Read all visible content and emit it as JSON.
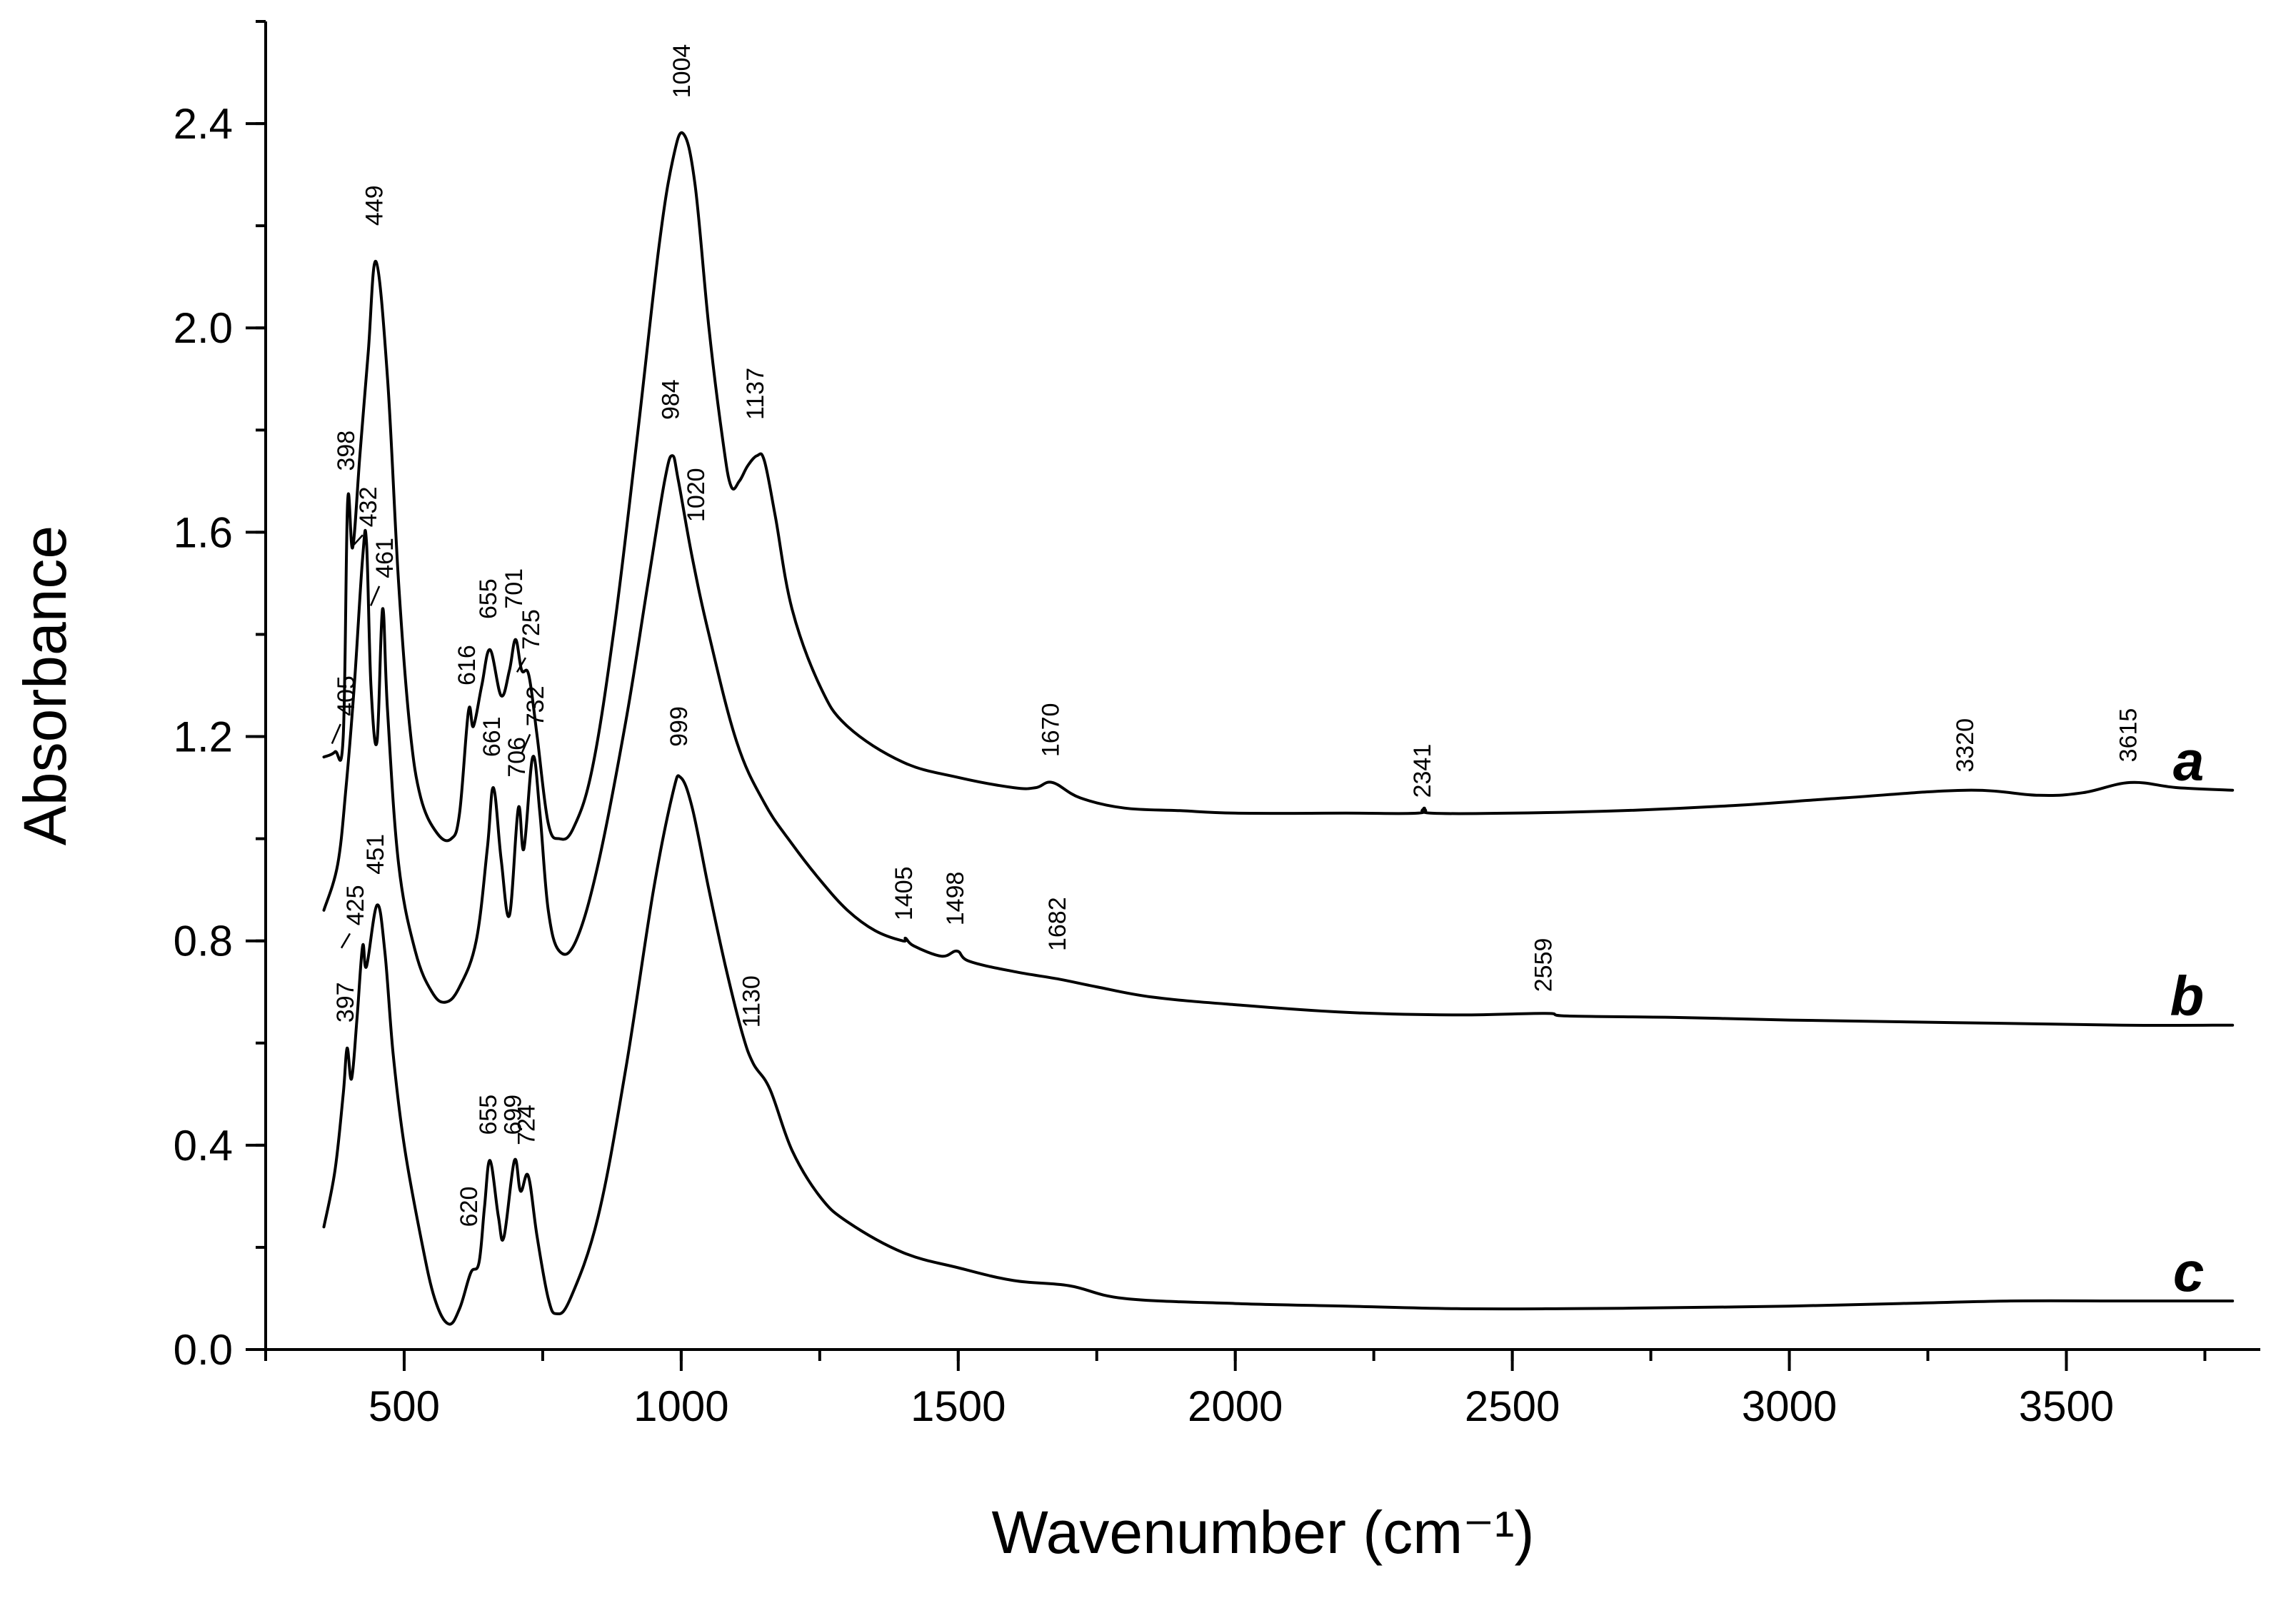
{
  "chart_data": {
    "type": "line",
    "title": "",
    "xlabel": "Wavenumber (cm⁻¹)",
    "ylabel": "Absorbance",
    "xlim": [
      250,
      3850
    ],
    "ylim": [
      0.0,
      2.6
    ],
    "x_ticks": [
      {
        "value": 500,
        "label": "500"
      },
      {
        "value": 1000,
        "label": "1000"
      },
      {
        "value": 1500,
        "label": "1500"
      },
      {
        "value": 2000,
        "label": "2000"
      },
      {
        "value": 2500,
        "label": "2500"
      },
      {
        "value": 3000,
        "label": "3000"
      },
      {
        "value": 3500,
        "label": "3500"
      }
    ],
    "x_minor_step": 250,
    "y_ticks": [
      {
        "value": 0.0,
        "label": "0.0"
      },
      {
        "value": 0.4,
        "label": "0.4"
      },
      {
        "value": 0.8,
        "label": "0.8"
      },
      {
        "value": 1.2,
        "label": "1.2"
      },
      {
        "value": 1.6,
        "label": "1.6"
      },
      {
        "value": 2.0,
        "label": "2.0"
      },
      {
        "value": 2.4,
        "label": "2.4"
      }
    ],
    "y_minor_step": 0.2,
    "grid": false,
    "series": [
      {
        "name": "a",
        "points": [
          [
            355,
            1.16
          ],
          [
            375,
            1.17
          ],
          [
            390,
            1.2
          ],
          [
            398,
            1.66
          ],
          [
            407,
            1.57
          ],
          [
            420,
            1.75
          ],
          [
            435,
            1.95
          ],
          [
            449,
            2.13
          ],
          [
            470,
            1.9
          ],
          [
            490,
            1.5
          ],
          [
            510,
            1.22
          ],
          [
            530,
            1.08
          ],
          [
            560,
            1.01
          ],
          [
            585,
            1.0
          ],
          [
            600,
            1.05
          ],
          [
            616,
            1.25
          ],
          [
            625,
            1.22
          ],
          [
            640,
            1.3
          ],
          [
            655,
            1.37
          ],
          [
            675,
            1.28
          ],
          [
            690,
            1.33
          ],
          [
            701,
            1.39
          ],
          [
            712,
            1.33
          ],
          [
            725,
            1.32
          ],
          [
            740,
            1.2
          ],
          [
            760,
            1.03
          ],
          [
            780,
            1.0
          ],
          [
            805,
            1.02
          ],
          [
            840,
            1.14
          ],
          [
            880,
            1.42
          ],
          [
            920,
            1.78
          ],
          [
            960,
            2.16
          ],
          [
            985,
            2.33
          ],
          [
            1004,
            2.38
          ],
          [
            1025,
            2.28
          ],
          [
            1050,
            2.0
          ],
          [
            1075,
            1.78
          ],
          [
            1090,
            1.69
          ],
          [
            1105,
            1.7
          ],
          [
            1120,
            1.73
          ],
          [
            1137,
            1.75
          ],
          [
            1150,
            1.74
          ],
          [
            1170,
            1.63
          ],
          [
            1200,
            1.45
          ],
          [
            1250,
            1.3
          ],
          [
            1300,
            1.22
          ],
          [
            1400,
            1.15
          ],
          [
            1500,
            1.12
          ],
          [
            1600,
            1.1
          ],
          [
            1640,
            1.1
          ],
          [
            1670,
            1.11
          ],
          [
            1720,
            1.08
          ],
          [
            1800,
            1.06
          ],
          [
            1900,
            1.055
          ],
          [
            2000,
            1.05
          ],
          [
            2200,
            1.05
          ],
          [
            2330,
            1.05
          ],
          [
            2341,
            1.06
          ],
          [
            2352,
            1.05
          ],
          [
            2500,
            1.05
          ],
          [
            2700,
            1.055
          ],
          [
            2900,
            1.065
          ],
          [
            3100,
            1.08
          ],
          [
            3320,
            1.095
          ],
          [
            3450,
            1.085
          ],
          [
            3530,
            1.09
          ],
          [
            3615,
            1.11
          ],
          [
            3700,
            1.1
          ],
          [
            3800,
            1.095
          ]
        ]
      },
      {
        "name": "b",
        "points": [
          [
            355,
            0.86
          ],
          [
            380,
            0.95
          ],
          [
            395,
            1.1
          ],
          [
            410,
            1.3
          ],
          [
            425,
            1.55
          ],
          [
            432,
            1.58
          ],
          [
            440,
            1.3
          ],
          [
            451,
            1.19
          ],
          [
            461,
            1.45
          ],
          [
            470,
            1.25
          ],
          [
            490,
            0.95
          ],
          [
            520,
            0.78
          ],
          [
            550,
            0.7
          ],
          [
            575,
            0.68
          ],
          [
            600,
            0.71
          ],
          [
            630,
            0.8
          ],
          [
            650,
            0.98
          ],
          [
            661,
            1.1
          ],
          [
            675,
            0.96
          ],
          [
            690,
            0.85
          ],
          [
            706,
            1.06
          ],
          [
            716,
            0.98
          ],
          [
            732,
            1.16
          ],
          [
            745,
            1.05
          ],
          [
            760,
            0.86
          ],
          [
            780,
            0.78
          ],
          [
            810,
            0.8
          ],
          [
            850,
            0.95
          ],
          [
            900,
            1.23
          ],
          [
            940,
            1.5
          ],
          [
            970,
            1.7
          ],
          [
            984,
            1.75
          ],
          [
            995,
            1.7
          ],
          [
            1020,
            1.55
          ],
          [
            1050,
            1.4
          ],
          [
            1100,
            1.19
          ],
          [
            1150,
            1.07
          ],
          [
            1200,
            0.99
          ],
          [
            1250,
            0.92
          ],
          [
            1300,
            0.86
          ],
          [
            1350,
            0.82
          ],
          [
            1400,
            0.8
          ],
          [
            1405,
            0.805
          ],
          [
            1420,
            0.79
          ],
          [
            1470,
            0.77
          ],
          [
            1498,
            0.78
          ],
          [
            1520,
            0.76
          ],
          [
            1600,
            0.74
          ],
          [
            1682,
            0.725
          ],
          [
            1750,
            0.71
          ],
          [
            1850,
            0.69
          ],
          [
            2000,
            0.675
          ],
          [
            2200,
            0.66
          ],
          [
            2400,
            0.655
          ],
          [
            2559,
            0.658
          ],
          [
            2600,
            0.653
          ],
          [
            2800,
            0.65
          ],
          [
            3000,
            0.645
          ],
          [
            3300,
            0.64
          ],
          [
            3600,
            0.635
          ],
          [
            3800,
            0.635
          ]
        ]
      },
      {
        "name": "c",
        "points": [
          [
            355,
            0.24
          ],
          [
            375,
            0.35
          ],
          [
            390,
            0.5
          ],
          [
            397,
            0.59
          ],
          [
            405,
            0.53
          ],
          [
            415,
            0.65
          ],
          [
            425,
            0.79
          ],
          [
            432,
            0.75
          ],
          [
            451,
            0.87
          ],
          [
            465,
            0.78
          ],
          [
            480,
            0.58
          ],
          [
            500,
            0.4
          ],
          [
            530,
            0.22
          ],
          [
            555,
            0.1
          ],
          [
            580,
            0.05
          ],
          [
            600,
            0.08
          ],
          [
            620,
            0.15
          ],
          [
            635,
            0.17
          ],
          [
            645,
            0.28
          ],
          [
            655,
            0.37
          ],
          [
            670,
            0.26
          ],
          [
            680,
            0.22
          ],
          [
            699,
            0.37
          ],
          [
            710,
            0.31
          ],
          [
            724,
            0.34
          ],
          [
            740,
            0.22
          ],
          [
            760,
            0.1
          ],
          [
            775,
            0.07
          ],
          [
            800,
            0.1
          ],
          [
            850,
            0.26
          ],
          [
            900,
            0.55
          ],
          [
            950,
            0.9
          ],
          [
            985,
            1.09
          ],
          [
            999,
            1.12
          ],
          [
            1020,
            1.06
          ],
          [
            1050,
            0.9
          ],
          [
            1080,
            0.75
          ],
          [
            1110,
            0.62
          ],
          [
            1130,
            0.56
          ],
          [
            1160,
            0.51
          ],
          [
            1200,
            0.39
          ],
          [
            1250,
            0.3
          ],
          [
            1300,
            0.25
          ],
          [
            1400,
            0.19
          ],
          [
            1500,
            0.16
          ],
          [
            1600,
            0.135
          ],
          [
            1700,
            0.125
          ],
          [
            1800,
            0.1
          ],
          [
            2000,
            0.09
          ],
          [
            2200,
            0.085
          ],
          [
            2400,
            0.08
          ],
          [
            2600,
            0.08
          ],
          [
            2800,
            0.082
          ],
          [
            3000,
            0.085
          ],
          [
            3200,
            0.09
          ],
          [
            3400,
            0.095
          ],
          [
            3600,
            0.095
          ],
          [
            3800,
            0.095
          ]
        ]
      }
    ],
    "peak_labels": [
      {
        "text": "1004",
        "wavenumber": 1004,
        "absorbance": 2.45
      },
      {
        "text": "449",
        "wavenumber": 449,
        "absorbance": 2.2
      },
      {
        "text": "398",
        "wavenumber": 398,
        "absorbance": 1.72
      },
      {
        "text": "432",
        "wavenumber": 438,
        "absorbance": 1.61,
        "leader": [
          1.6,
          1.59
        ]
      },
      {
        "text": "461",
        "wavenumber": 468,
        "absorbance": 1.51,
        "leader": [
          1.5,
          1.47
        ]
      },
      {
        "text": "405",
        "wavenumber": 398,
        "absorbance": 1.24,
        "leader": [
          1.23,
          1.2
        ]
      },
      {
        "text": "616",
        "wavenumber": 616,
        "absorbance": 1.3
      },
      {
        "text": "655",
        "wavenumber": 655,
        "absorbance": 1.43
      },
      {
        "text": "701",
        "wavenumber": 701,
        "absorbance": 1.45
      },
      {
        "text": "725",
        "wavenumber": 732,
        "absorbance": 1.37,
        "leader": [
          1.36,
          1.34
        ]
      },
      {
        "text": "1137",
        "wavenumber": 1137,
        "absorbance": 1.82
      },
      {
        "text": "984",
        "wavenumber": 984,
        "absorbance": 1.82
      },
      {
        "text": "1020",
        "wavenumber": 1030,
        "absorbance": 1.62
      },
      {
        "text": "661",
        "wavenumber": 661,
        "absorbance": 1.16
      },
      {
        "text": "706",
        "wavenumber": 706,
        "absorbance": 1.12
      },
      {
        "text": "732",
        "wavenumber": 740,
        "absorbance": 1.22,
        "leader": [
          1.21,
          1.18
        ]
      },
      {
        "text": "999",
        "wavenumber": 999,
        "absorbance": 1.18
      },
      {
        "text": "425",
        "wavenumber": 415,
        "absorbance": 0.83,
        "leader": [
          0.82,
          0.8
        ]
      },
      {
        "text": "451",
        "wavenumber": 451,
        "absorbance": 0.93
      },
      {
        "text": "397",
        "wavenumber": 397,
        "absorbance": 0.64
      },
      {
        "text": "1670",
        "wavenumber": 1670,
        "absorbance": 1.16
      },
      {
        "text": "2341",
        "wavenumber": 2341,
        "absorbance": 1.08
      },
      {
        "text": "3320",
        "wavenumber": 3320,
        "absorbance": 1.13
      },
      {
        "text": "3615",
        "wavenumber": 3615,
        "absorbance": 1.15
      },
      {
        "text": "1405",
        "wavenumber": 1405,
        "absorbance": 0.84
      },
      {
        "text": "1498",
        "wavenumber": 1498,
        "absorbance": 0.83
      },
      {
        "text": "1682",
        "wavenumber": 1682,
        "absorbance": 0.78
      },
      {
        "text": "2559",
        "wavenumber": 2559,
        "absorbance": 0.7
      },
      {
        "text": "1130",
        "wavenumber": 1130,
        "absorbance": 0.63
      },
      {
        "text": "655",
        "wavenumber": 655,
        "absorbance": 0.42
      },
      {
        "text": "699",
        "wavenumber": 699,
        "absorbance": 0.42
      },
      {
        "text": "724",
        "wavenumber": 724,
        "absorbance": 0.4
      },
      {
        "text": "620",
        "wavenumber": 620,
        "absorbance": 0.24
      }
    ],
    "series_tags": [
      {
        "text": "a",
        "series": "a"
      },
      {
        "text": "b",
        "series": "b"
      },
      {
        "text": "c",
        "series": "c"
      }
    ]
  }
}
